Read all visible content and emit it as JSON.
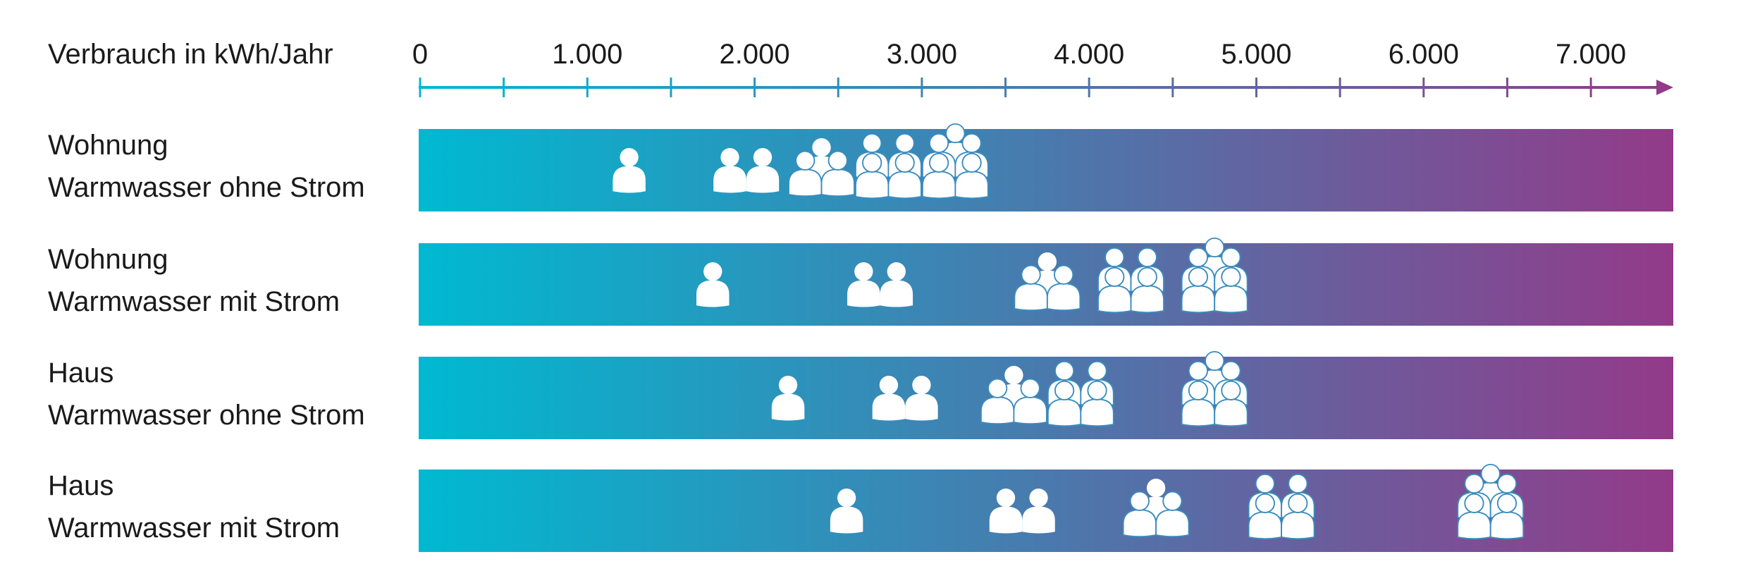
{
  "chart_data": {
    "type": "bar",
    "title": "",
    "xlabel": "Verbrauch in kWh/Jahr",
    "xlim": [
      0,
      7500
    ],
    "major_ticks": [
      0,
      1000,
      2000,
      3000,
      4000,
      5000,
      6000,
      7000
    ],
    "tick_labels": [
      "0",
      "1.000",
      "2.000",
      "3.000",
      "4.000",
      "5.000",
      "6.000",
      "7.000"
    ],
    "minor_tick_step": 500,
    "gradient": [
      "#00b9d1",
      "#933a89"
    ],
    "icon": "person-group-icon",
    "categories": [
      {
        "line1": "Wohnung",
        "line2": "Warmwasser ohne Strom",
        "points": [
          {
            "persons": 1,
            "kwh": 1250
          },
          {
            "persons": 2,
            "kwh": 1950
          },
          {
            "persons": 3,
            "kwh": 2400
          },
          {
            "persons": 4,
            "kwh": 2800
          },
          {
            "persons": 5,
            "kwh": 3200
          }
        ]
      },
      {
        "line1": "Wohnung",
        "line2": "Warmwasser mit Strom",
        "points": [
          {
            "persons": 1,
            "kwh": 1750
          },
          {
            "persons": 2,
            "kwh": 2750
          },
          {
            "persons": 3,
            "kwh": 3750
          },
          {
            "persons": 4,
            "kwh": 4250
          },
          {
            "persons": 5,
            "kwh": 4750
          }
        ]
      },
      {
        "line1": "Haus",
        "line2": "Warmwasser ohne Strom",
        "points": [
          {
            "persons": 1,
            "kwh": 2200
          },
          {
            "persons": 2,
            "kwh": 2900
          },
          {
            "persons": 3,
            "kwh": 3550
          },
          {
            "persons": 4,
            "kwh": 3950
          },
          {
            "persons": 5,
            "kwh": 4750
          }
        ]
      },
      {
        "line1": "Haus",
        "line2": "Warmwasser mit Strom",
        "points": [
          {
            "persons": 1,
            "kwh": 2550
          },
          {
            "persons": 2,
            "kwh": 3600
          },
          {
            "persons": 3,
            "kwh": 4400
          },
          {
            "persons": 4,
            "kwh": 5150
          },
          {
            "persons": 5,
            "kwh": 6400
          }
        ]
      }
    ]
  }
}
